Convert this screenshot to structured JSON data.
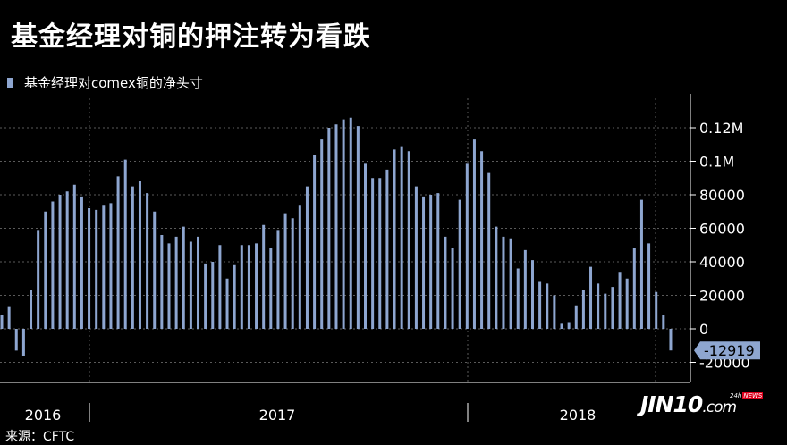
{
  "title": "基金经理对铜的押注转为看跌",
  "source": "来源：CFTC",
  "watermark": {
    "main": "JIN10",
    "suffix": ".com",
    "badge_pre": "24h",
    "badge_news": "NEWS"
  },
  "colors": {
    "bar": "#8ea6d0",
    "grid": "#5a5a5a",
    "axis": "#ffffff",
    "background": "#000000",
    "callout": "#8ea6d0"
  },
  "chart_data": {
    "type": "bar",
    "series": [
      {
        "name": "基金经理对comex铜的净头寸",
        "values": [
          8000,
          13000,
          -13000,
          -16000,
          23000,
          59000,
          70000,
          76000,
          80000,
          82000,
          86000,
          79000,
          72000,
          71000,
          74000,
          75000,
          91000,
          101000,
          85000,
          88000,
          81000,
          70000,
          56000,
          51000,
          55000,
          61000,
          52000,
          55000,
          39000,
          40000,
          50000,
          30000,
          38000,
          50000,
          50000,
          51000,
          62000,
          48000,
          59000,
          69000,
          66000,
          74000,
          85000,
          104000,
          113000,
          120000,
          122000,
          125000,
          126000,
          121000,
          99000,
          90000,
          90000,
          95000,
          107000,
          109000,
          106000,
          85000,
          79000,
          80000,
          81000,
          55000,
          48000,
          77000,
          99000,
          113000,
          106000,
          93000,
          61000,
          55000,
          54000,
          36000,
          47000,
          41000,
          28000,
          27000,
          20000,
          3000,
          4000,
          14000,
          23000,
          37000,
          27000,
          21000,
          25000,
          34000,
          30000,
          48000,
          77000,
          51000,
          22000,
          8000,
          -12919
        ]
      }
    ],
    "ylim": [
      -20000,
      130000
    ],
    "y_ticks": [
      {
        "value": 120000,
        "label": "0.12M"
      },
      {
        "value": 100000,
        "label": "0.1M"
      },
      {
        "value": 80000,
        "label": "80000"
      },
      {
        "value": 60000,
        "label": "60000"
      },
      {
        "value": 40000,
        "label": "40000"
      },
      {
        "value": 20000,
        "label": "20000"
      },
      {
        "value": 0,
        "label": "0"
      },
      {
        "value": -20000,
        "label": "-20000"
      }
    ],
    "x_labels": [
      "2016",
      "2017",
      "2018"
    ],
    "last_value_label": "-12919",
    "grid": true,
    "legend_position": "top-left"
  }
}
